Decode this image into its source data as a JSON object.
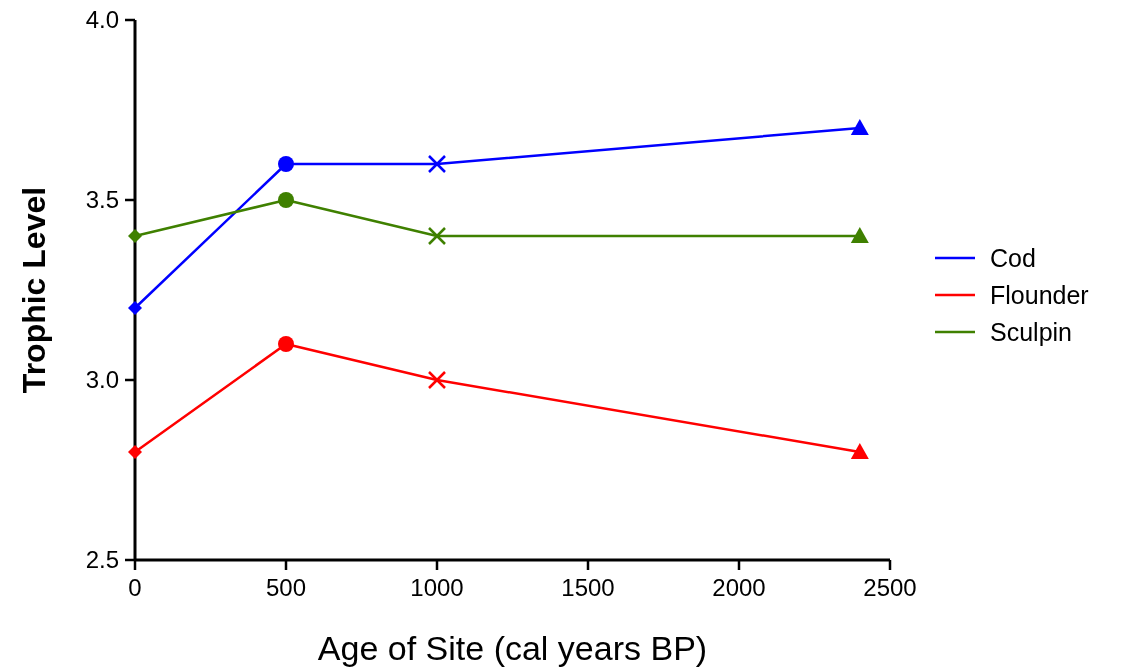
{
  "chart_data": {
    "type": "line",
    "xlabel": "Age of Site (cal years BP)",
    "ylabel": "Trophic Level",
    "x": [
      0,
      500,
      1000,
      2400
    ],
    "xlim": [
      0,
      2500
    ],
    "xticks": [
      0,
      500,
      1000,
      1500,
      2000,
      2500
    ],
    "ylim": [
      2.5,
      4.0
    ],
    "yticks": [
      {
        "value": 2.5,
        "label": "2.5"
      },
      {
        "value": 3,
        "label": "3.0"
      },
      {
        "value": 3.5,
        "label": "3.5"
      },
      {
        "value": 4,
        "label": "4.0"
      }
    ],
    "grid": false,
    "legend": "right",
    "line_style": "solid",
    "marker": [
      "diamond",
      "circle",
      "cross",
      "triangle"
    ],
    "series": [
      {
        "name": "Cod",
        "color": "#0000ff",
        "values": [
          3.2,
          3.6,
          3.6,
          3.7
        ]
      },
      {
        "name": "Flounder",
        "color": "#ff0000",
        "values": [
          2.8,
          3.1,
          3.0,
          2.8
        ]
      },
      {
        "name": "Sculpin",
        "color": "#3f8000",
        "values": [
          3.4,
          3.5,
          3.4,
          3.4
        ]
      }
    ]
  }
}
